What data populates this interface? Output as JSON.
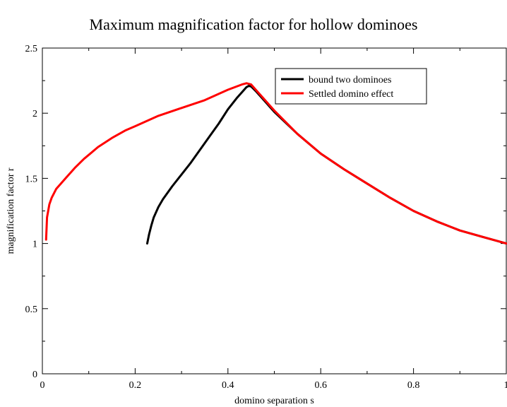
{
  "chart_data": {
    "type": "line",
    "title": "Maximum magnification factor for hollow dominoes",
    "xlabel": "domino separation s",
    "ylabel": "magnification factor r",
    "xlim": [
      0,
      1
    ],
    "ylim": [
      0,
      2.5
    ],
    "x_ticks": [
      0,
      0.2,
      0.4,
      0.6,
      0.8,
      1
    ],
    "x_tick_labels": [
      "0",
      "0.2",
      "0.4",
      "0.6",
      "0.8",
      "1"
    ],
    "y_ticks": [
      0,
      0.5,
      1,
      1.5,
      2,
      2.5
    ],
    "y_tick_labels": [
      "0",
      "0.5",
      "1",
      "1.5",
      "2",
      "2.5"
    ],
    "grid": false,
    "legend_position": "top-right",
    "series": [
      {
        "name": "bound two dominoes",
        "color": "#000000",
        "points": [
          [
            0.226,
            1.0
          ],
          [
            0.23,
            1.07
          ],
          [
            0.235,
            1.14
          ],
          [
            0.24,
            1.2
          ],
          [
            0.25,
            1.28
          ],
          [
            0.26,
            1.34
          ],
          [
            0.28,
            1.44
          ],
          [
            0.3,
            1.53
          ],
          [
            0.32,
            1.62
          ],
          [
            0.34,
            1.72
          ],
          [
            0.36,
            1.82
          ],
          [
            0.38,
            1.92
          ],
          [
            0.4,
            2.03
          ],
          [
            0.42,
            2.12
          ],
          [
            0.44,
            2.2
          ],
          [
            0.445,
            2.21
          ],
          [
            0.45,
            2.205
          ],
          [
            0.46,
            2.17
          ],
          [
            0.48,
            2.09
          ],
          [
            0.5,
            2.01
          ],
          [
            0.55,
            1.84
          ],
          [
            0.6,
            1.69
          ],
          [
            0.65,
            1.57
          ],
          [
            0.7,
            1.46
          ],
          [
            0.75,
            1.35
          ],
          [
            0.8,
            1.25
          ],
          [
            0.85,
            1.17
          ],
          [
            0.9,
            1.1
          ],
          [
            0.95,
            1.05
          ],
          [
            1.0,
            1.0
          ]
        ]
      },
      {
        "name": "Settled domino effect",
        "color": "#ff0000",
        "points": [
          [
            0.008,
            1.03
          ],
          [
            0.01,
            1.2
          ],
          [
            0.015,
            1.3
          ],
          [
            0.02,
            1.35
          ],
          [
            0.03,
            1.42
          ],
          [
            0.05,
            1.5
          ],
          [
            0.07,
            1.58
          ],
          [
            0.09,
            1.65
          ],
          [
            0.1,
            1.68
          ],
          [
            0.12,
            1.74
          ],
          [
            0.15,
            1.81
          ],
          [
            0.18,
            1.87
          ],
          [
            0.2,
            1.9
          ],
          [
            0.25,
            1.98
          ],
          [
            0.3,
            2.04
          ],
          [
            0.35,
            2.1
          ],
          [
            0.4,
            2.18
          ],
          [
            0.43,
            2.22
          ],
          [
            0.44,
            2.23
          ],
          [
            0.45,
            2.22
          ],
          [
            0.46,
            2.18
          ],
          [
            0.48,
            2.1
          ],
          [
            0.5,
            2.02
          ],
          [
            0.55,
            1.84
          ],
          [
            0.6,
            1.69
          ],
          [
            0.65,
            1.57
          ],
          [
            0.7,
            1.46
          ],
          [
            0.75,
            1.35
          ],
          [
            0.8,
            1.25
          ],
          [
            0.85,
            1.17
          ],
          [
            0.9,
            1.1
          ],
          [
            0.95,
            1.05
          ],
          [
            1.0,
            1.0
          ]
        ]
      }
    ]
  }
}
